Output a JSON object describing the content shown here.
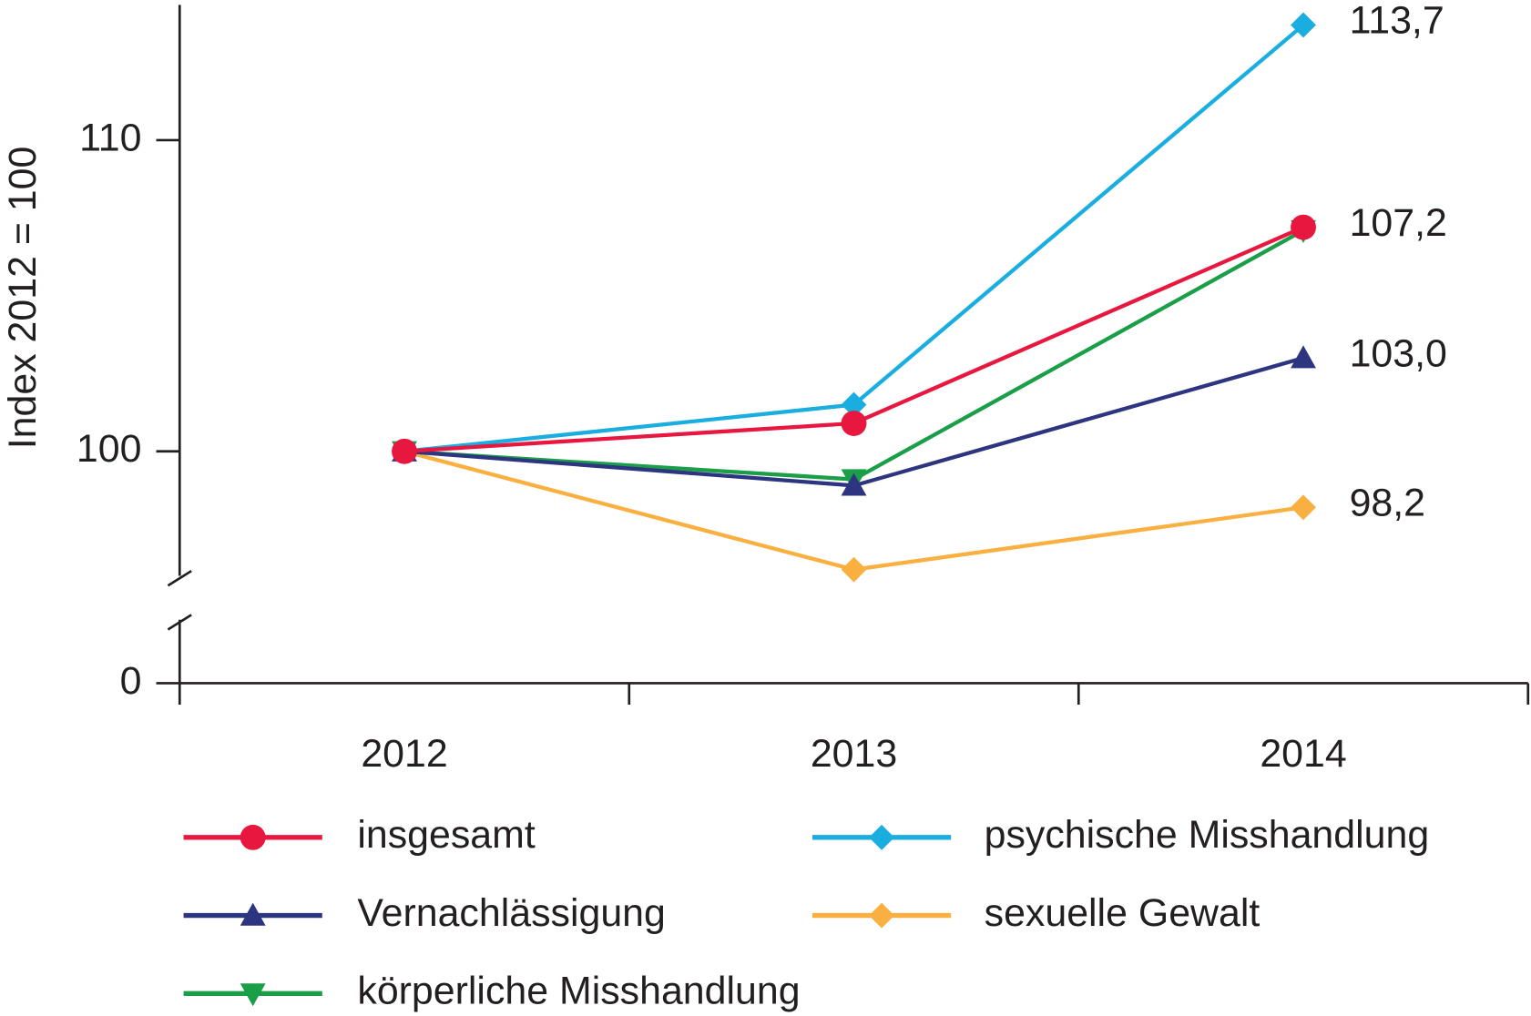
{
  "chart_data": {
    "type": "line",
    "y_label": "Index 2012 = 100",
    "categories": [
      "2012",
      "2013",
      "2014"
    ],
    "ylim": [
      0,
      114.3
    ],
    "axis_break": [
      0,
      96
    ],
    "yticks": [
      0,
      100,
      110
    ],
    "series": [
      {
        "name": "insgesamt",
        "color": "#e8173f",
        "marker": "circle",
        "values": [
          100,
          100.9,
          107.2
        ],
        "value_labels": [
          null,
          null,
          "107,2"
        ]
      },
      {
        "name": "Vernachlässigung",
        "color": "#2e3580",
        "marker": "triangle-up",
        "values": [
          100,
          98.9,
          103.0
        ],
        "value_labels": [
          null,
          null,
          "103,0"
        ]
      },
      {
        "name": "körperliche Misshandlung",
        "color": "#1a9e48",
        "marker": "triangle-down",
        "values": [
          100,
          99.1,
          107.1
        ]
      },
      {
        "name": "psychische Misshandlung",
        "color": "#1aaee0",
        "marker": "diamond",
        "values": [
          100,
          101.5,
          113.7
        ],
        "value_labels": [
          null,
          null,
          "113,7"
        ]
      },
      {
        "name": "sexuelle Gewalt",
        "color": "#f9b040",
        "marker": "diamond",
        "values": [
          100,
          96.2,
          98.2
        ],
        "value_labels": [
          null,
          null,
          "98,2"
        ]
      }
    ]
  }
}
